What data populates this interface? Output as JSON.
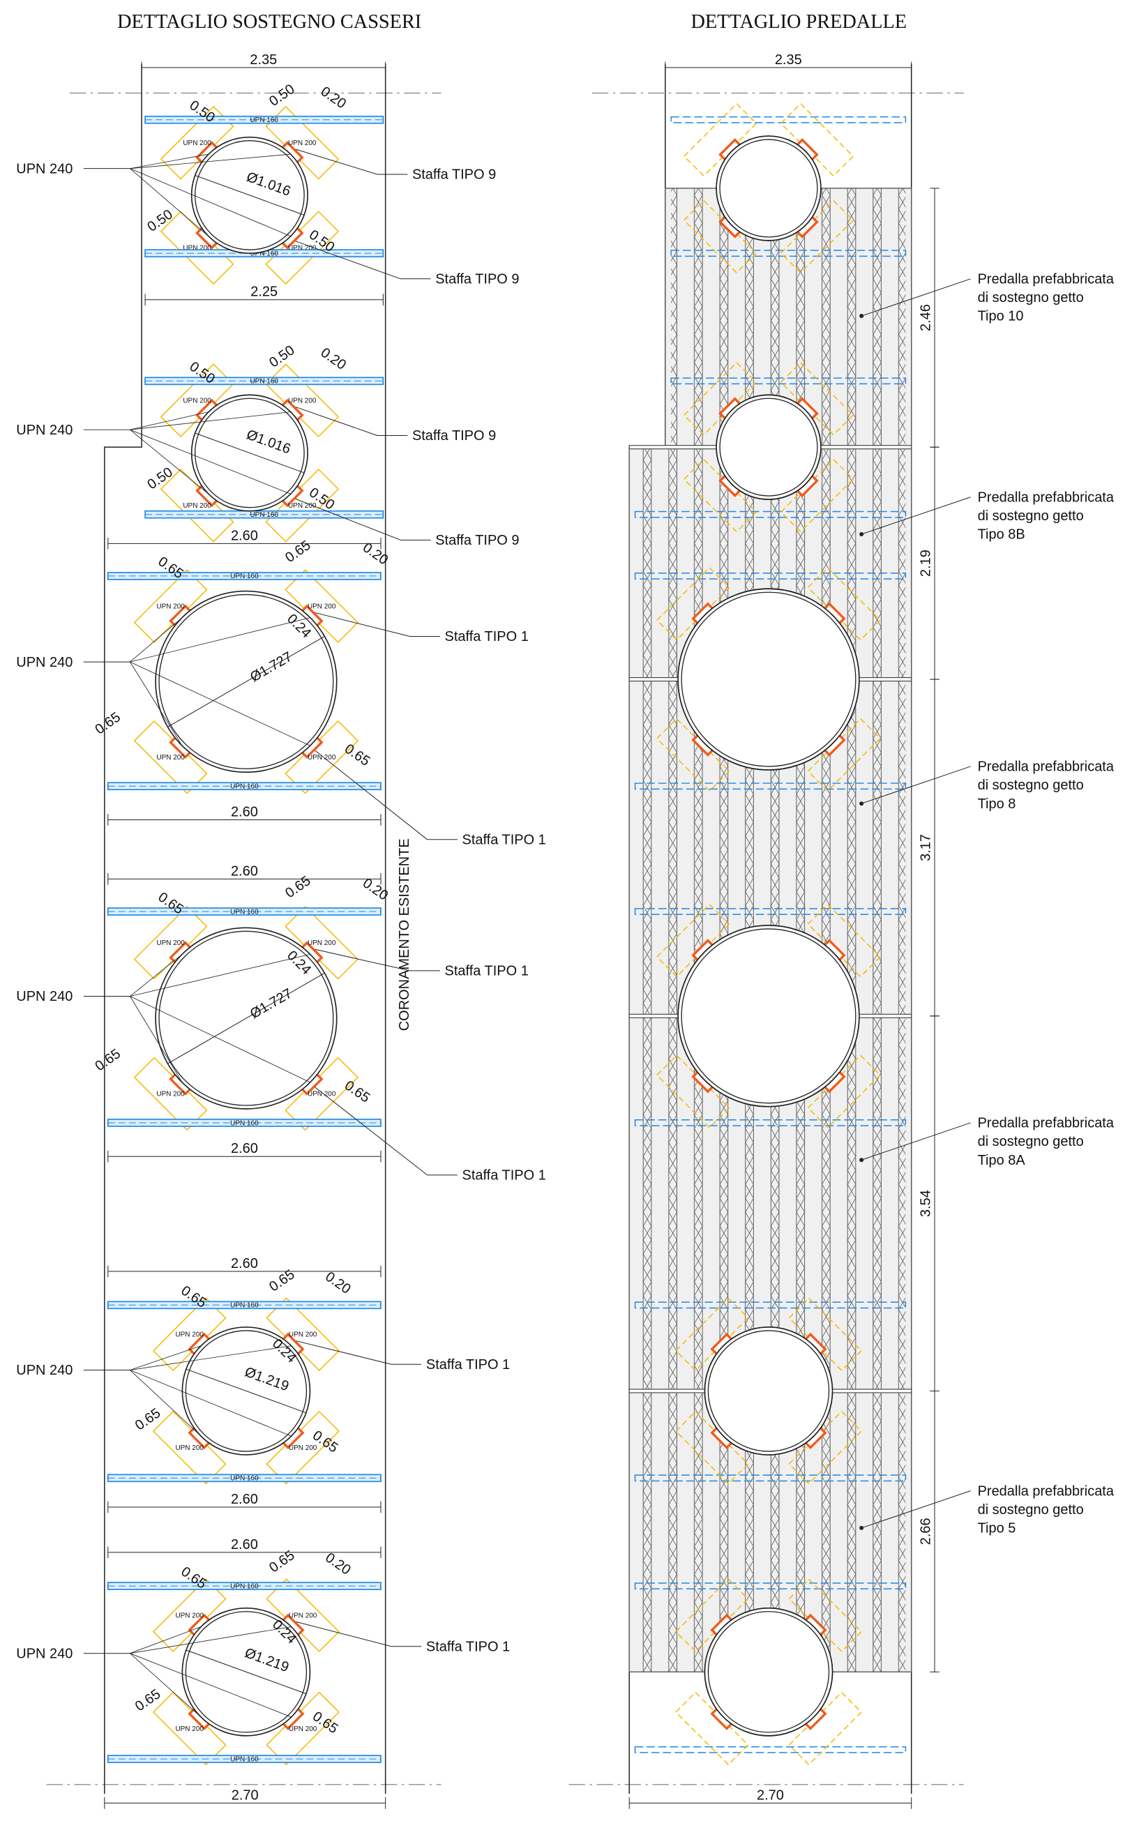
{
  "titles": {
    "left": "DETTAGLIO SOSTEGNO CASSERI",
    "right": "DETTAGLIO PREDALLE"
  },
  "left": {
    "top_width": "2.35",
    "bottom_width": "2.70",
    "wall_label": "CORONAMENTO ESISTENTE",
    "modules": [
      {
        "upn_label": "UPN 240",
        "beams": [
          "UPN 160",
          "UPN 160"
        ],
        "brackets": [
          "UPN 200",
          "UPN 200",
          "UPN 200",
          "UPN 200"
        ],
        "offsets": [
          "0.50",
          "0.50",
          "0.50",
          "0.50"
        ],
        "gap": "0.20",
        "diameter": "Ø1.016",
        "width_bottom": "2.25",
        "staffa": [
          "Staffa TIPO 9",
          "Staffa TIPO 9"
        ]
      },
      {
        "upn_label": "UPN 240",
        "beams": [
          "UPN 160",
          "UPN 160"
        ],
        "brackets": [
          "UPN 200",
          "UPN 200",
          "UPN 200",
          "UPN 200"
        ],
        "offsets": [
          "0.50",
          "0.50",
          "0.50",
          "0.50"
        ],
        "gap": "0.20",
        "diameter": "Ø1.016",
        "staffa": [
          "Staffa TIPO 9",
          "Staffa TIPO 9"
        ]
      },
      {
        "upn_label": "UPN 240",
        "beams": [
          "UPN 160",
          "UPN 160"
        ],
        "brackets": [
          "UPN 200",
          "UPN 200",
          "UPN 200",
          "UPN 200"
        ],
        "offsets": [
          "0.65",
          "0.65",
          "0.65",
          "0.65"
        ],
        "gap": "0.20",
        "radial": "0.24",
        "diameter": "Ø1.727",
        "width_top": "2.60",
        "width_bottom": "2.60",
        "staffa": [
          "Staffa TIPO 1",
          "Staffa TIPO 1"
        ]
      },
      {
        "upn_label": "UPN 240",
        "beams": [
          "UPN 160",
          "UPN 160"
        ],
        "brackets": [
          "UPN 200",
          "UPN 200",
          "UPN 200",
          "UPN 200"
        ],
        "offsets": [
          "0.65",
          "0.65",
          "0.65",
          "0.65"
        ],
        "gap": "0.20",
        "radial": "0.24",
        "diameter": "Ø1.727",
        "width_top": "2.60",
        "width_bottom": "2.60",
        "staffa": [
          "Staffa TIPO 1",
          "Staffa TIPO 1"
        ]
      },
      {
        "upn_label": "UPN 240",
        "beams": [
          "UPN 160",
          "UPN 160"
        ],
        "brackets": [
          "UPN 200",
          "UPN 200",
          "UPN 200",
          "UPN 200"
        ],
        "offsets": [
          "0.65",
          "0.65",
          "0.65",
          "0.65"
        ],
        "gap": "0.20",
        "radial": "0.24",
        "diameter": "Ø1.219",
        "width_top": "2.60",
        "width_bottom": "2.60",
        "staffa": [
          "Staffa TIPO 1"
        ]
      },
      {
        "upn_label": "UPN 240",
        "beams": [
          "UPN 160",
          "UPN 160"
        ],
        "brackets": [
          "UPN 200",
          "UPN 200",
          "UPN 200",
          "UPN 200"
        ],
        "offsets": [
          "0.65",
          "0.65",
          "0.65",
          "0.65"
        ],
        "gap": "0.20",
        "radial": "0.24",
        "diameter": "Ø1.219",
        "width_top": "2.60",
        "staffa": [
          "Staffa TIPO 1"
        ]
      }
    ]
  },
  "right": {
    "top_width": "2.35",
    "bottom_width": "2.70",
    "panels": [
      {
        "height": "2.46",
        "label": [
          "Predalla prefabbricata",
          "di sostegno getto",
          "Tipo 10"
        ]
      },
      {
        "height": "2.19",
        "label": [
          "Predalla prefabbricata",
          "di sostegno getto",
          "Tipo 8B"
        ]
      },
      {
        "height": "3.17",
        "label": [
          "Predalla prefabbricata",
          "di sostegno getto",
          "Tipo 8"
        ]
      },
      {
        "height": "3.54",
        "label": [
          "Predalla prefabbricata",
          "di sostegno getto",
          "Tipo 8A"
        ]
      },
      {
        "height": "2.66",
        "label": [
          "Predalla prefabbricata",
          "di sostegno getto",
          "Tipo 5"
        ]
      }
    ]
  }
}
